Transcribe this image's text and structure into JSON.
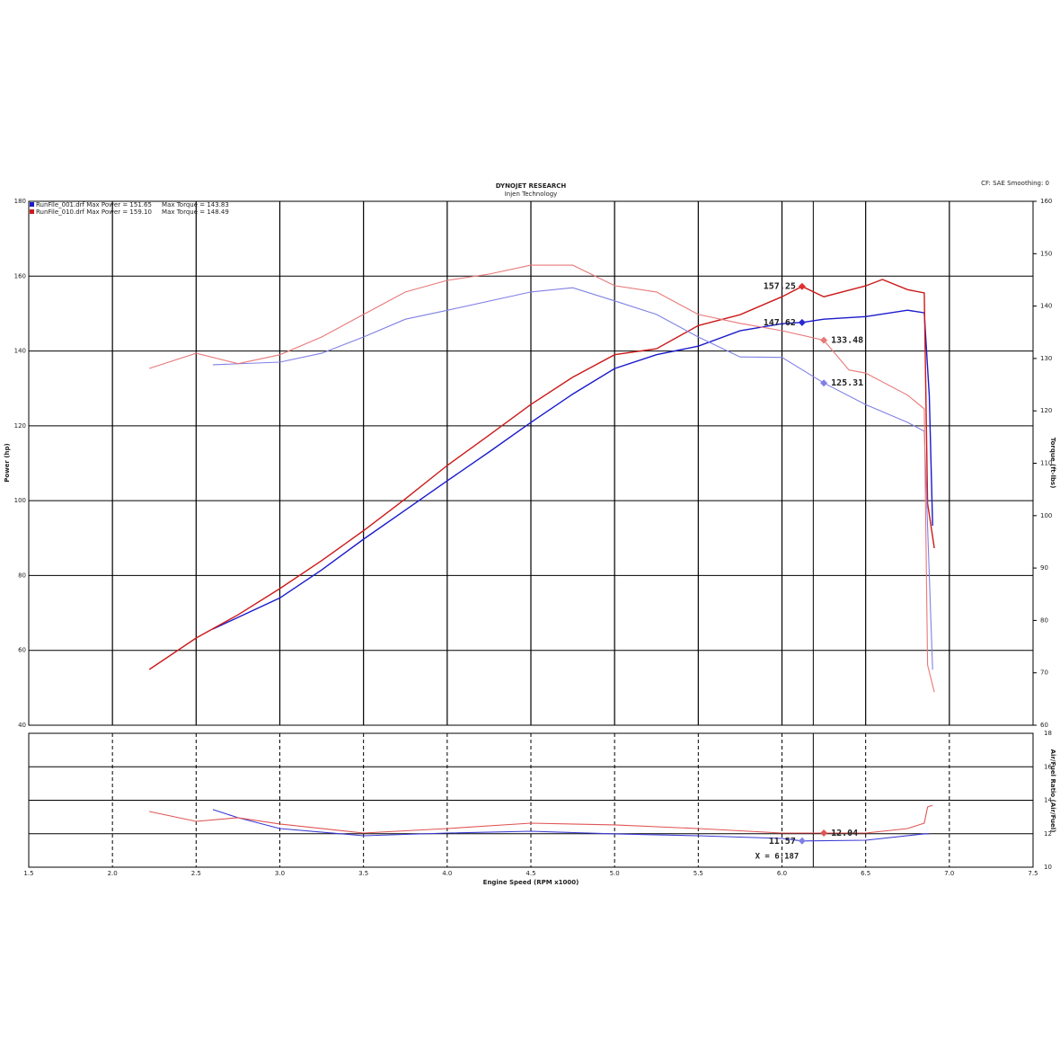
{
  "header": {
    "title": "DYNOJET RESEARCH",
    "subtitle": "Injen Technology",
    "corner_text": "CF: SAE  Smoothing: 0"
  },
  "chart_data": [
    {
      "type": "line",
      "grid": true,
      "legend": [
        {
          "label": "RunFile_001.drf Max Power = 151.65     Max Torque = 143.83",
          "color": "#1a1acc"
        },
        {
          "label": "RunFile_010.drf Max Power = 159.10     Max Torque = 148.49",
          "color": "#cc1a1a"
        }
      ],
      "ylabel": "Power (hp)",
      "y2label": "Torque (ft-lbs)",
      "xlim": [
        1.5,
        7.5
      ],
      "xticks": [
        1.5,
        {
          "value": 2,
          "label": "2.0"
        },
        2.5,
        {
          "value": 3,
          "label": "3.0"
        },
        3.5,
        {
          "value": 4,
          "label": "4.0"
        },
        4.5,
        {
          "value": 5,
          "label": "5.0"
        },
        5.5,
        {
          "value": 6,
          "label": "6.0"
        },
        6.5,
        {
          "value": 7,
          "label": "7.0"
        },
        7.5
      ],
      "ylim": [
        40,
        180
      ],
      "yticks": [
        40,
        60,
        80,
        100,
        120,
        140,
        160,
        180
      ],
      "y2lim": [
        60,
        160
      ],
      "y2ticks": [
        60,
        70,
        80,
        90,
        100,
        110,
        120,
        130,
        140,
        150,
        160
      ],
      "series": [
        {
          "color": "#1a1acc",
          "x": [
            2.6,
            3.0,
            3.25,
            3.5,
            3.75,
            4.0,
            4.25,
            4.5,
            4.75,
            5.0,
            5.25,
            5.5,
            5.75,
            6.0,
            6.12,
            6.25,
            6.5,
            6.75,
            6.85,
            6.88,
            6.9
          ],
          "values": [
            65.7,
            74,
            81.5,
            89.7,
            97.5,
            105.3,
            113,
            120.9,
            128.5,
            135.3,
            139,
            141.3,
            145.4,
            147.3,
            147.62,
            148.5,
            149.2,
            150.9,
            150.2,
            128,
            93.3
          ]
        },
        {
          "color": "#cc1a1a",
          "x": [
            2.22,
            2.5,
            2.75,
            3.0,
            3.25,
            3.5,
            3.75,
            4.0,
            4.25,
            4.5,
            4.75,
            5.0,
            5.25,
            5.5,
            5.75,
            6.0,
            6.12,
            6.25,
            6.5,
            6.6,
            6.75,
            6.85,
            6.87,
            6.91
          ],
          "values": [
            54.9,
            63.3,
            69.5,
            76.5,
            84,
            92,
            100.5,
            109.4,
            117.5,
            125.7,
            133,
            139,
            140.6,
            146.8,
            149.7,
            154.5,
            157.25,
            154.5,
            157.4,
            159.1,
            156.4,
            155.5,
            99.3,
            87.3
          ]
        },
        {
          "color": "#8080e6",
          "axis": "y2",
          "x": [
            2.6,
            3.0,
            3.25,
            3.5,
            3.75,
            4.0,
            4.5,
            4.75,
            5.0,
            5.25,
            5.5,
            5.75,
            6.0,
            6.25,
            6.5,
            6.75,
            6.85,
            6.88,
            6.9
          ],
          "values": [
            128.8,
            129.3,
            131,
            134.1,
            137.5,
            139.2,
            142.7,
            143.5,
            141,
            138.4,
            134.1,
            130.3,
            130.2,
            125.31,
            121.2,
            117.8,
            116.1,
            88.6,
            70.6
          ]
        },
        {
          "color": "#e87878",
          "axis": "y2",
          "x": [
            2.22,
            2.5,
            2.75,
            3.0,
            3.25,
            3.5,
            3.75,
            4.0,
            4.25,
            4.5,
            4.75,
            5.0,
            5.25,
            5.5,
            5.75,
            6.0,
            6.25,
            6.4,
            6.5,
            6.75,
            6.85,
            6.87,
            6.91
          ],
          "values": [
            128.1,
            131,
            129,
            130.7,
            134.1,
            138.4,
            142.7,
            144.9,
            146.1,
            147.8,
            147.8,
            143.9,
            142.7,
            138.4,
            136.7,
            135.3,
            133.48,
            127.8,
            127.2,
            123,
            120.4,
            71.5,
            66.3
          ]
        }
      ],
      "annotations": [
        {
          "label": "157.25",
          "x": 6.12,
          "y": 157.25,
          "color": "#e03030"
        },
        {
          "label": "147.62",
          "x": 6.12,
          "y": 147.62,
          "color": "#2a2ad0"
        },
        {
          "label": "133.48",
          "x": 6.25,
          "y": 133.48,
          "axis": "y2",
          "color": "#e87878"
        },
        {
          "label": "125.31",
          "x": 6.25,
          "y": 125.31,
          "axis": "y2",
          "color": "#8080e6"
        }
      ],
      "cursor_x": 6.187
    },
    {
      "type": "line",
      "grid": true,
      "xlabel": "Engine Speed (RPM x1000)",
      "ylabel": "Air/Fuel Ratio (Air/Fuel)",
      "xlim": [
        1.5,
        7.5
      ],
      "xticks": [
        1.5,
        {
          "value": 2,
          "label": "2.0"
        },
        2.5,
        {
          "value": 3,
          "label": "3.0"
        },
        3.5,
        {
          "value": 4,
          "label": "4.0"
        },
        4.5,
        {
          "value": 5,
          "label": "5.0"
        },
        5.5,
        {
          "value": 6,
          "label": "6.0"
        },
        6.5,
        {
          "value": 7,
          "label": "7.0"
        },
        7.5
      ],
      "ylim": [
        10,
        18
      ],
      "yticks": [
        10,
        12,
        14,
        16,
        18
      ],
      "series": [
        {
          "color": "#3b3bd6",
          "x": [
            2.6,
            2.75,
            3.0,
            3.5,
            4.0,
            4.5,
            5.0,
            5.5,
            6.0,
            6.12,
            6.5,
            6.85,
            6.88
          ],
          "values": [
            13.44,
            12.96,
            12.31,
            11.88,
            12.04,
            12.15,
            11.99,
            11.88,
            11.72,
            11.57,
            11.61,
            11.99,
            11.99
          ]
        },
        {
          "color": "#e05555",
          "x": [
            2.22,
            2.5,
            2.75,
            3.0,
            3.5,
            4.0,
            4.5,
            5.0,
            5.5,
            6.0,
            6.25,
            6.5,
            6.75,
            6.85,
            6.87,
            6.9
          ],
          "values": [
            13.33,
            12.74,
            12.96,
            12.58,
            12.04,
            12.31,
            12.63,
            12.53,
            12.31,
            12.04,
            12.04,
            12.04,
            12.31,
            12.63,
            13.6,
            13.7
          ]
        }
      ],
      "annotations": [
        {
          "label": "12.04",
          "x": 6.25,
          "y": 12.04,
          "color": "#e05555"
        },
        {
          "label": "11.57",
          "x": 6.12,
          "y": 11.57,
          "color": "#8080e6"
        }
      ],
      "cursor": {
        "x": 6.187,
        "label": "X = 6.187"
      }
    }
  ]
}
